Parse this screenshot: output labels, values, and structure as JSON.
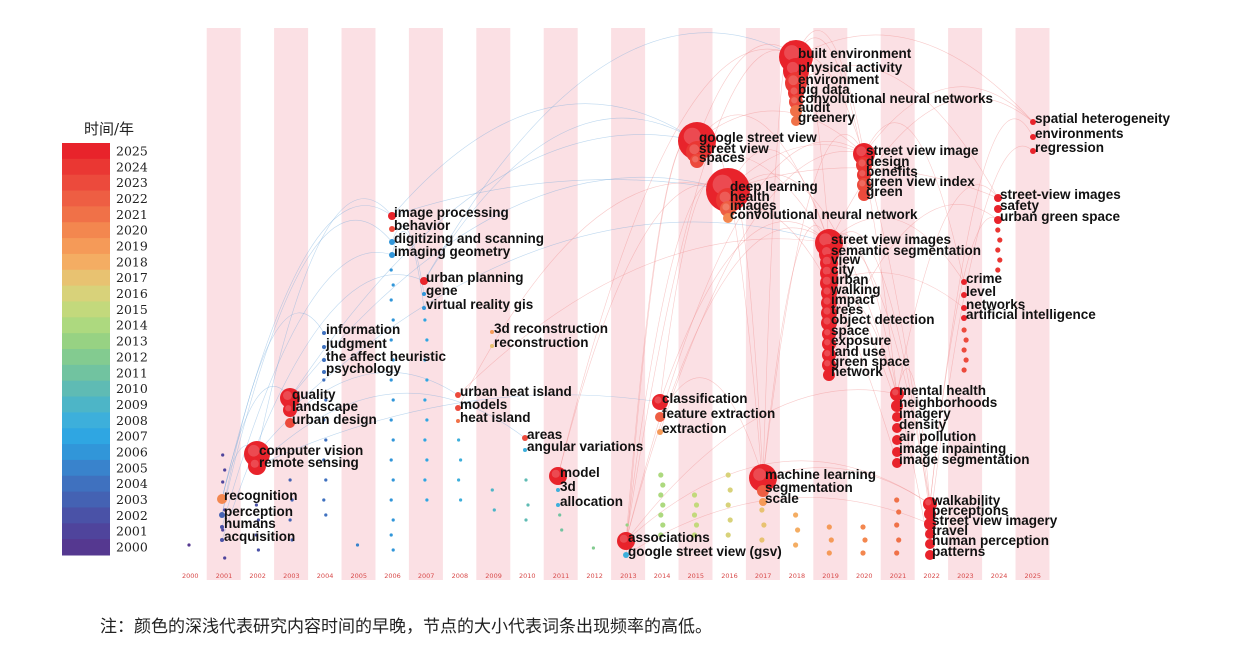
{
  "legend": {
    "title": "时间/年",
    "years": [
      "2025",
      "2024",
      "2023",
      "2022",
      "2021",
      "2020",
      "2019",
      "2018",
      "2017",
      "2016",
      "2015",
      "2014",
      "2013",
      "2012",
      "2011",
      "2010",
      "2009",
      "2008",
      "2007",
      "2006",
      "2005",
      "2004",
      "2003",
      "2002",
      "2001",
      "2000"
    ],
    "colors": [
      "#e8232b",
      "#ea3733",
      "#ec4a3c",
      "#ee5e43",
      "#f07148",
      "#f3874f",
      "#f59a58",
      "#f4ad63",
      "#e8c271",
      "#d8d27a",
      "#c3d97c",
      "#add97f",
      "#97d283",
      "#83cb90",
      "#71c3a0",
      "#5fbbb4",
      "#4db5c7",
      "#3dafdb",
      "#2fa6e2",
      "#3196d9",
      "#3983cc",
      "#3f71bf",
      "#4462b3",
      "#4a52a7",
      "#4f449c",
      "#553890"
    ]
  },
  "timeline": {
    "years": [
      "2000",
      "2001",
      "2002",
      "2003",
      "2004",
      "2005",
      "2006",
      "2007",
      "2008",
      "2009",
      "2010",
      "2011",
      "2012",
      "2013",
      "2014",
      "2015",
      "2016",
      "2017",
      "2018",
      "2019",
      "2020",
      "2021",
      "2022",
      "2023",
      "2024",
      "2025"
    ]
  },
  "keywords": [
    {
      "id": "k1",
      "label": "built environment",
      "year": 2018,
      "r": 17,
      "color": "#e8232b"
    },
    {
      "id": "k2",
      "label": "physical activity",
      "year": 2018,
      "r": 13,
      "color": "#e8232b"
    },
    {
      "id": "k3",
      "label": "environment",
      "year": 2018,
      "r": 11,
      "color": "#ea3733"
    },
    {
      "id": "k4",
      "label": "big data",
      "year": 2018,
      "r": 8,
      "color": "#ea3733"
    },
    {
      "id": "k5",
      "label": "convolutional neural networks",
      "year": 2018,
      "r": 7,
      "color": "#ec4a3c"
    },
    {
      "id": "k6",
      "label": "audit",
      "year": 2018,
      "r": 6,
      "color": "#f07148"
    },
    {
      "id": "k7",
      "label": "greenery",
      "year": 2018,
      "r": 5,
      "color": "#f07148"
    },
    {
      "id": "k8",
      "label": "spatial heterogeneity",
      "year": 2025,
      "r": 3,
      "color": "#e8232b"
    },
    {
      "id": "k9",
      "label": "environments",
      "year": 2025,
      "r": 3,
      "color": "#e8232b"
    },
    {
      "id": "k10",
      "label": "regression",
      "year": 2025,
      "r": 3,
      "color": "#e8232b"
    },
    {
      "id": "k11",
      "label": "google street view",
      "year": 2015,
      "r": 19,
      "color": "#e8232b"
    },
    {
      "id": "k12",
      "label": "street view",
      "year": 2015,
      "r": 11,
      "color": "#ea3733"
    },
    {
      "id": "k13",
      "label": "spaces",
      "year": 2015,
      "r": 7,
      "color": "#ec4a3c"
    },
    {
      "id": "k14",
      "label": "street view image",
      "year": 2020,
      "r": 11,
      "color": "#e8232b"
    },
    {
      "id": "k15",
      "label": "design",
      "year": 2020,
      "r": 8,
      "color": "#ea3733"
    },
    {
      "id": "k16",
      "label": "benefits",
      "year": 2020,
      "r": 7,
      "color": "#ea3733"
    },
    {
      "id": "k17",
      "label": "green view index",
      "year": 2020,
      "r": 7,
      "color": "#ec4a3c"
    },
    {
      "id": "k18",
      "label": "green",
      "year": 2020,
      "r": 6,
      "color": "#ec4a3c"
    },
    {
      "id": "k19",
      "label": "deep learning",
      "year": 2016,
      "r": 22,
      "color": "#e8232b"
    },
    {
      "id": "k20",
      "label": "health",
      "year": 2016,
      "r": 12,
      "color": "#ea3733"
    },
    {
      "id": "k21",
      "label": "images",
      "year": 2016,
      "r": 8,
      "color": "#ee5e43"
    },
    {
      "id": "k22",
      "label": "convolutional neural network",
      "year": 2016,
      "r": 5,
      "color": "#f3874f"
    },
    {
      "id": "k23",
      "label": "street-view images",
      "year": 2024,
      "r": 4,
      "color": "#e8232b"
    },
    {
      "id": "k24",
      "label": "safety",
      "year": 2024,
      "r": 4,
      "color": "#e8232b"
    },
    {
      "id": "k25",
      "label": "urban green space",
      "year": 2024,
      "r": 4,
      "color": "#e8232b"
    },
    {
      "id": "k26",
      "label": "image processing",
      "year": 2006,
      "r": 4,
      "color": "#e8232b"
    },
    {
      "id": "k27",
      "label": "behavior",
      "year": 2006,
      "r": 3,
      "color": "#ec4a3c"
    },
    {
      "id": "k28",
      "label": "digitizing and scanning",
      "year": 2006,
      "r": 3,
      "color": "#3196d9"
    },
    {
      "id": "k29",
      "label": "imaging geometry",
      "year": 2006,
      "r": 3,
      "color": "#3196d9"
    },
    {
      "id": "k30",
      "label": "street view images",
      "year": 2019,
      "r": 14,
      "color": "#e8232b"
    },
    {
      "id": "k31",
      "label": "semantic segmentation",
      "year": 2019,
      "r": 10,
      "color": "#e8232b"
    },
    {
      "id": "k32",
      "label": "view",
      "year": 2019,
      "r": 9,
      "color": "#e8232b"
    },
    {
      "id": "k33",
      "label": "city",
      "year": 2019,
      "r": 9,
      "color": "#e8232b"
    },
    {
      "id": "k34",
      "label": "urban",
      "year": 2019,
      "r": 9,
      "color": "#e8232b"
    },
    {
      "id": "k35",
      "label": "walking",
      "year": 2019,
      "r": 8,
      "color": "#e8232b"
    },
    {
      "id": "k36",
      "label": "impact",
      "year": 2019,
      "r": 8,
      "color": "#e8232b"
    },
    {
      "id": "k37",
      "label": "trees",
      "year": 2019,
      "r": 8,
      "color": "#e8232b"
    },
    {
      "id": "k38",
      "label": "object detection",
      "year": 2019,
      "r": 8,
      "color": "#e8232b"
    },
    {
      "id": "k39",
      "label": "space",
      "year": 2019,
      "r": 7,
      "color": "#e8232b"
    },
    {
      "id": "k40",
      "label": "exposure",
      "year": 2019,
      "r": 7,
      "color": "#e8232b"
    },
    {
      "id": "k41",
      "label": "land use",
      "year": 2019,
      "r": 7,
      "color": "#e8232b"
    },
    {
      "id": "k42",
      "label": "green space",
      "year": 2019,
      "r": 7,
      "color": "#e8232b"
    },
    {
      "id": "k43",
      "label": "network",
      "year": 2019,
      "r": 6,
      "color": "#e8232b"
    },
    {
      "id": "k44",
      "label": "urban planning",
      "year": 2007,
      "r": 4,
      "color": "#e8232b"
    },
    {
      "id": "k45",
      "label": "gene",
      "year": 2007,
      "r": 2,
      "color": "#3196d9"
    },
    {
      "id": "k46",
      "label": "virtual reality gis",
      "year": 2007,
      "r": 2,
      "color": "#3196d9"
    },
    {
      "id": "k47",
      "label": "crime",
      "year": 2023,
      "r": 3,
      "color": "#e8232b"
    },
    {
      "id": "k48",
      "label": "level",
      "year": 2023,
      "r": 3,
      "color": "#e8232b"
    },
    {
      "id": "k49",
      "label": "networks",
      "year": 2023,
      "r": 3,
      "color": "#e8232b"
    },
    {
      "id": "k50",
      "label": "artificial intelligence",
      "year": 2023,
      "r": 3,
      "color": "#e8232b"
    },
    {
      "id": "k51",
      "label": "information",
      "year": 2004,
      "r": 2,
      "color": "#3f71bf"
    },
    {
      "id": "k52",
      "label": "judgment",
      "year": 2004,
      "r": 2,
      "color": "#3f71bf"
    },
    {
      "id": "k53",
      "label": "the affect heuristic",
      "year": 2004,
      "r": 2,
      "color": "#3f71bf"
    },
    {
      "id": "k54",
      "label": "psychology",
      "year": 2004,
      "r": 2,
      "color": "#3f71bf"
    },
    {
      "id": "k55",
      "label": "3d reconstruction",
      "year": 2009,
      "r": 2,
      "color": "#f59a58"
    },
    {
      "id": "k56",
      "label": "reconstruction",
      "year": 2009,
      "r": 2,
      "color": "#e8c271"
    },
    {
      "id": "k57",
      "label": "quality",
      "year": 2003,
      "r": 10,
      "color": "#e8232b"
    },
    {
      "id": "k58",
      "label": "landscape",
      "year": 2003,
      "r": 7,
      "color": "#e8232b"
    },
    {
      "id": "k59",
      "label": "urban design",
      "year": 2003,
      "r": 5,
      "color": "#ec4a3c"
    },
    {
      "id": "k60",
      "label": "urban heat island",
      "year": 2008,
      "r": 3,
      "color": "#ec4a3c"
    },
    {
      "id": "k61",
      "label": "models",
      "year": 2008,
      "r": 3,
      "color": "#ec4a3c"
    },
    {
      "id": "k62",
      "label": "heat island",
      "year": 2008,
      "r": 2,
      "color": "#f07148"
    },
    {
      "id": "k63",
      "label": "classification",
      "year": 2014,
      "r": 8,
      "color": "#e8232b"
    },
    {
      "id": "k64",
      "label": "feature extraction",
      "year": 2014,
      "r": 5,
      "color": "#ee5e43"
    },
    {
      "id": "k65",
      "label": "extraction",
      "year": 2014,
      "r": 3,
      "color": "#f59a58"
    },
    {
      "id": "k66",
      "label": "mental health",
      "year": 2021,
      "r": 7,
      "color": "#e8232b"
    },
    {
      "id": "k67",
      "label": "neighborhoods",
      "year": 2021,
      "r": 6,
      "color": "#e8232b"
    },
    {
      "id": "k68",
      "label": "imagery",
      "year": 2021,
      "r": 5,
      "color": "#e8232b"
    },
    {
      "id": "k69",
      "label": "density",
      "year": 2021,
      "r": 5,
      "color": "#e8232b"
    },
    {
      "id": "k70",
      "label": "air pollution",
      "year": 2021,
      "r": 5,
      "color": "#e8232b"
    },
    {
      "id": "k71",
      "label": "image inpainting",
      "year": 2021,
      "r": 5,
      "color": "#e8232b"
    },
    {
      "id": "k72",
      "label": "image segmentation",
      "year": 2021,
      "r": 5,
      "color": "#e8232b"
    },
    {
      "id": "k73",
      "label": "areas",
      "year": 2010,
      "r": 3,
      "color": "#ec4a3c"
    },
    {
      "id": "k74",
      "label": "angular variations",
      "year": 2010,
      "r": 2,
      "color": "#3dafdb"
    },
    {
      "id": "k75",
      "label": "computer vision",
      "year": 2002,
      "r": 13,
      "color": "#e8232b"
    },
    {
      "id": "k76",
      "label": "remote sensing",
      "year": 2002,
      "r": 9,
      "color": "#e8232b"
    },
    {
      "id": "k77",
      "label": "model",
      "year": 2011,
      "r": 9,
      "color": "#e8232b"
    },
    {
      "id": "k78",
      "label": "3d",
      "year": 2011,
      "r": 2,
      "color": "#3dafdb"
    },
    {
      "id": "k79",
      "label": "allocation",
      "year": 2011,
      "r": 2,
      "color": "#3dafdb"
    },
    {
      "id": "k80",
      "label": "machine learning",
      "year": 2017,
      "r": 14,
      "color": "#e8232b"
    },
    {
      "id": "k81",
      "label": "segmentation",
      "year": 2017,
      "r": 6,
      "color": "#ee5e43"
    },
    {
      "id": "k82",
      "label": "scale",
      "year": 2017,
      "r": 4,
      "color": "#f59a58"
    },
    {
      "id": "k83",
      "label": "recognition",
      "year": 2001,
      "r": 5,
      "color": "#f3874f"
    },
    {
      "id": "k84",
      "label": "perception",
      "year": 2001,
      "r": 3,
      "color": "#4462b3"
    },
    {
      "id": "k85",
      "label": "humans",
      "year": 2001,
      "r": 2,
      "color": "#4a52a7"
    },
    {
      "id": "k86",
      "label": "acquisition",
      "year": 2001,
      "r": 2,
      "color": "#4a52a7"
    },
    {
      "id": "k87",
      "label": "walkability",
      "year": 2022,
      "r": 7,
      "color": "#e8232b"
    },
    {
      "id": "k88",
      "label": "perceptions",
      "year": 2022,
      "r": 6,
      "color": "#e8232b"
    },
    {
      "id": "k89",
      "label": "street view imagery",
      "year": 2022,
      "r": 6,
      "color": "#e8232b"
    },
    {
      "id": "k90",
      "label": "travel",
      "year": 2022,
      "r": 5,
      "color": "#e8232b"
    },
    {
      "id": "k91",
      "label": "human perception",
      "year": 2022,
      "r": 5,
      "color": "#e8232b"
    },
    {
      "id": "k92",
      "label": "patterns",
      "year": 2022,
      "r": 5,
      "color": "#e8232b"
    },
    {
      "id": "k93",
      "label": "associations",
      "year": 2013,
      "r": 9,
      "color": "#e8232b"
    },
    {
      "id": "k94",
      "label": "google street view (gsv)",
      "year": 2013,
      "r": 3,
      "color": "#3dafdb"
    }
  ],
  "note": "注：颜色的深浅代表研究内容时间的早晚，节点的大小代表词条出现频率的高低。"
}
